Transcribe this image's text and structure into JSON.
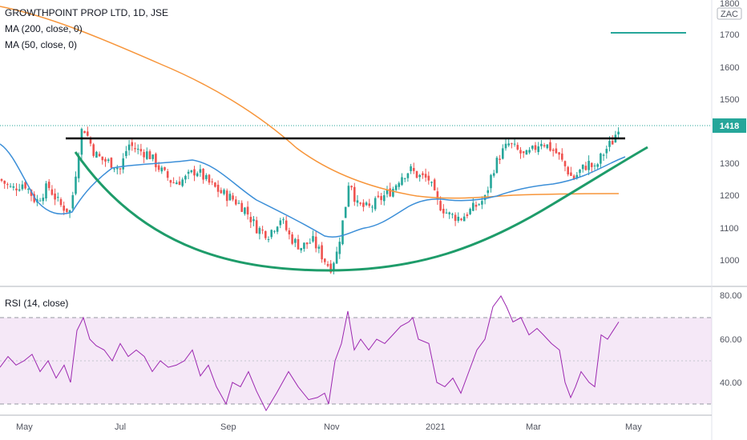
{
  "header": {
    "symbol_line": "GROWTHPOINT PROP LTD, 1D, JSE",
    "ma200_label": "MA (200, close, 0)",
    "ma50_label": "MA (50, close, 0)",
    "rsi_label": "RSI (14, close)"
  },
  "price_axis": {
    "currency": "ZAC",
    "last_price": "1418",
    "last_price_color": "#26a69a"
  },
  "colors": {
    "up": "#26a69a",
    "down": "#ef5350",
    "ma200": "#f7953a",
    "ma50": "#3c8fd8",
    "rsi_line": "#9c27b0",
    "rsi_band": "#e1bee7",
    "neckline": "#000000",
    "cup": "#1e9c6a"
  },
  "chart_data": [
    {
      "type": "candlestick",
      "x": [
        "May",
        "Jul",
        "Sep",
        "Nov",
        "2021",
        "Mar",
        "May"
      ],
      "y_ticks": [
        1000,
        1100,
        1200,
        1300,
        1400,
        1500,
        1600,
        1700,
        1800
      ],
      "ylim": [
        940,
        1810
      ],
      "series_approx_close": [
        {
          "date": "May",
          "close": 1180
        },
        {
          "date": "early Jun",
          "close": 1150
        },
        {
          "date": "mid Jun",
          "close": 1430
        },
        {
          "date": "Jul",
          "close": 1330
        },
        {
          "date": "Aug",
          "close": 1250
        },
        {
          "date": "Sep",
          "close": 1200
        },
        {
          "date": "Oct",
          "close": 1030
        },
        {
          "date": "Nov",
          "close": 990
        },
        {
          "date": "mid Nov",
          "close": 1250
        },
        {
          "date": "Dec",
          "close": 1280
        },
        {
          "date": "2021",
          "close": 1140
        },
        {
          "date": "Feb",
          "close": 1370
        },
        {
          "date": "Mar",
          "close": 1340
        },
        {
          "date": "early Apr",
          "close": 1240
        },
        {
          "date": "late Apr",
          "close": 1418
        }
      ],
      "last_price": 1418
    },
    {
      "type": "line",
      "x": [
        "May",
        "Jul",
        "Sep",
        "Nov",
        "2021",
        "Mar",
        "May"
      ],
      "y_ticks": [
        40,
        60,
        80
      ],
      "ylim": [
        25,
        82
      ],
      "band": [
        30,
        70
      ],
      "rsi_approx": [
        {
          "date": "May",
          "rsi": 50
        },
        {
          "date": "mid Jun",
          "rsi": 70
        },
        {
          "date": "Jul",
          "rsi": 55
        },
        {
          "date": "Sep",
          "rsi": 30
        },
        {
          "date": "Oct",
          "rsi": 28
        },
        {
          "date": "Nov",
          "rsi": 30
        },
        {
          "date": "mid Nov",
          "rsi": 73
        },
        {
          "date": "Dec",
          "rsi": 70
        },
        {
          "date": "2021",
          "rsi": 37
        },
        {
          "date": "Feb",
          "rsi": 80
        },
        {
          "date": "Mar",
          "rsi": 62
        },
        {
          "date": "early Apr",
          "rsi": 33
        },
        {
          "date": "late Apr",
          "rsi": 68
        }
      ]
    }
  ]
}
